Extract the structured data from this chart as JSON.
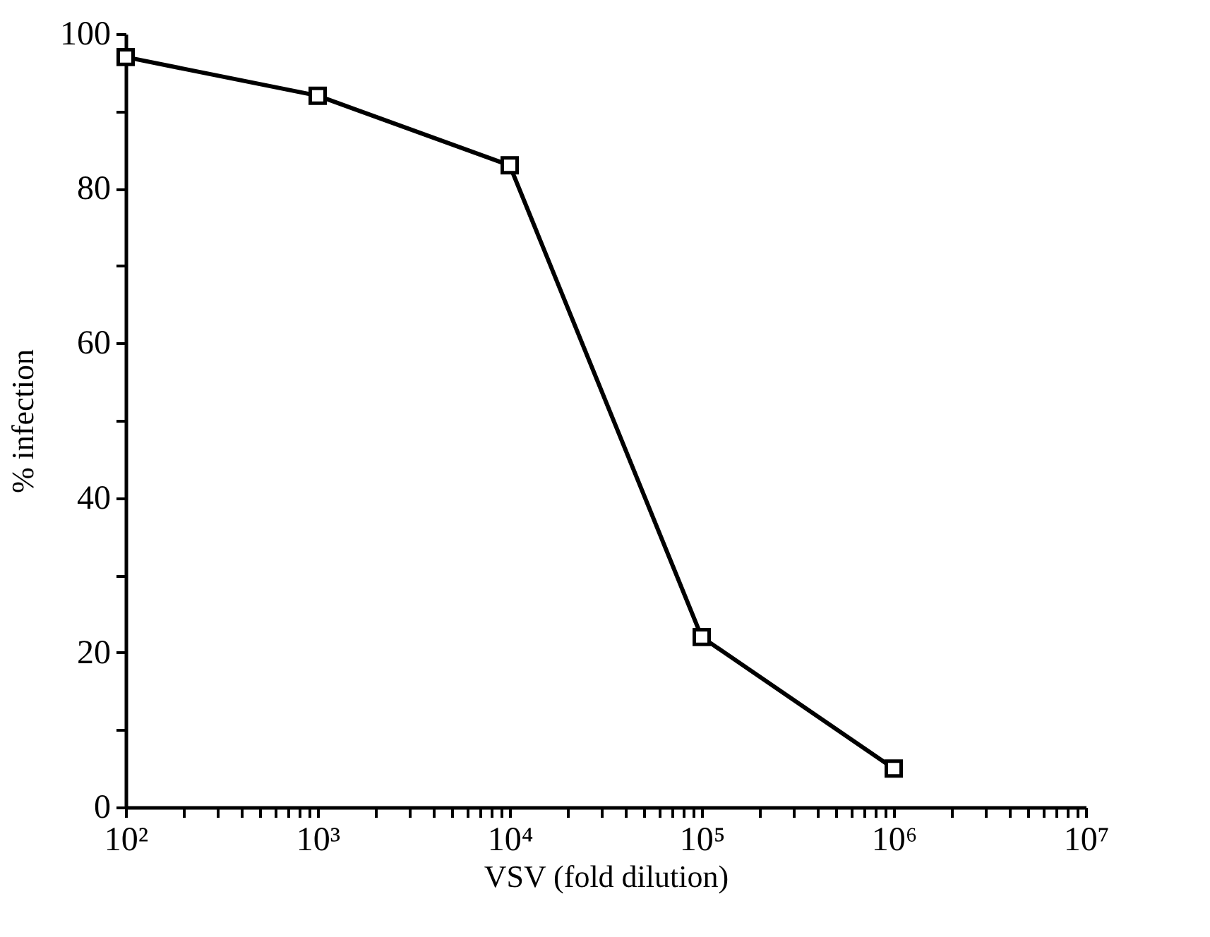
{
  "chart_data": {
    "type": "line",
    "xlabel": "VSV (fold dilution)",
    "ylabel": "% infection",
    "log": "x",
    "x": [
      100,
      1000,
      10000,
      100000,
      1000000
    ],
    "series": [
      {
        "color": "#000000",
        "values": [
          97,
          92,
          83,
          22,
          5
        ]
      }
    ],
    "xlim": [
      100,
      10000000
    ],
    "xticks": [
      {
        "value": 100,
        "label": "10²"
      },
      {
        "value": 200,
        "label": null
      },
      {
        "value": 300,
        "label": null
      },
      {
        "value": 400,
        "label": null
      },
      {
        "value": 500,
        "label": null
      },
      {
        "value": 600,
        "label": null
      },
      {
        "value": 700,
        "label": null
      },
      {
        "value": 800,
        "label": null
      },
      {
        "value": 900,
        "label": null
      },
      {
        "value": 1000,
        "label": "10³"
      },
      {
        "value": 2000,
        "label": null
      },
      {
        "value": 3000,
        "label": null
      },
      {
        "value": 4000,
        "label": null
      },
      {
        "value": 5000,
        "label": null
      },
      {
        "value": 6000,
        "label": null
      },
      {
        "value": 7000,
        "label": null
      },
      {
        "value": 8000,
        "label": null
      },
      {
        "value": 9000,
        "label": null
      },
      {
        "value": 10000,
        "label": "10⁴"
      },
      {
        "value": 20000,
        "label": null
      },
      {
        "value": 30000,
        "label": null
      },
      {
        "value": 40000,
        "label": null
      },
      {
        "value": 50000,
        "label": null
      },
      {
        "value": 60000,
        "label": null
      },
      {
        "value": 70000,
        "label": null
      },
      {
        "value": 80000,
        "label": null
      },
      {
        "value": 90000,
        "label": null
      },
      {
        "value": 100000,
        "label": "10⁵"
      },
      {
        "value": 200000,
        "label": null
      },
      {
        "value": 300000,
        "label": null
      },
      {
        "value": 400000,
        "label": null
      },
      {
        "value": 500000,
        "label": null
      },
      {
        "value": 600000,
        "label": null
      },
      {
        "value": 700000,
        "label": null
      },
      {
        "value": 800000,
        "label": null
      },
      {
        "value": 900000,
        "label": null
      },
      {
        "value": 1000000,
        "label": "10⁶"
      },
      {
        "value": 2000000,
        "label": null
      },
      {
        "value": 3000000,
        "label": null
      },
      {
        "value": 4000000,
        "label": null
      },
      {
        "value": 5000000,
        "label": null
      },
      {
        "value": 6000000,
        "label": null
      },
      {
        "value": 7000000,
        "label": null
      },
      {
        "value": 8000000,
        "label": null
      },
      {
        "value": 9000000,
        "label": null
      },
      {
        "value": 10000000,
        "label": "10⁷"
      }
    ],
    "ylim": [
      0,
      100
    ],
    "yticks": [
      0,
      {
        "value": 10,
        "label": null
      },
      20,
      {
        "value": 30,
        "label": null
      },
      40,
      {
        "value": 50,
        "label": null
      },
      60,
      {
        "value": 70,
        "label": null
      },
      80,
      {
        "value": 90,
        "label": null
      },
      100
    ],
    "grid": false,
    "marker": "square",
    "line_style": "solid"
  }
}
